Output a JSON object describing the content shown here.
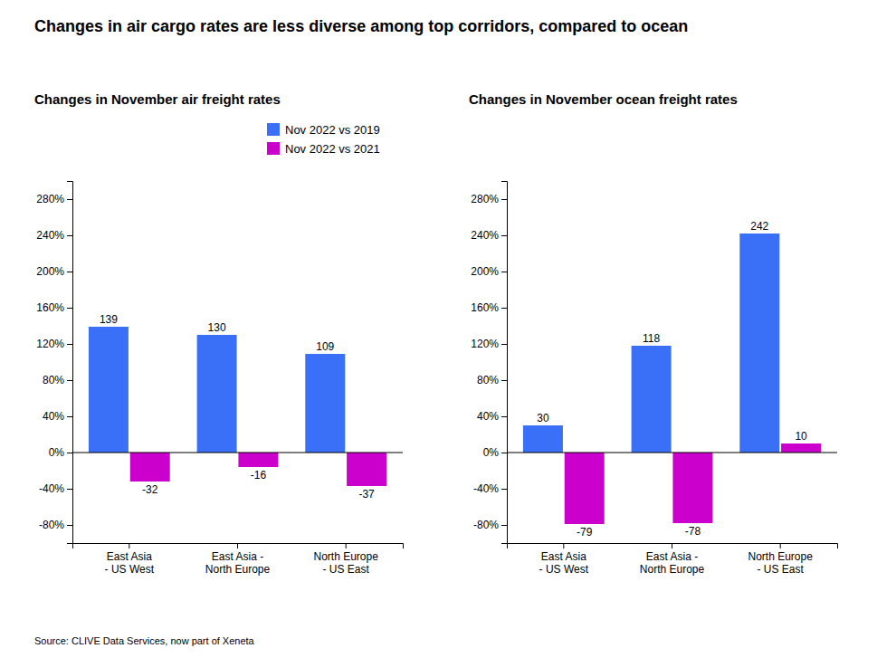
{
  "title": "Changes in air cargo rates are less diverse among top corridors, compared to ocean",
  "annotations": [
    "Source: CLIVE Data Services, now part of Xeneta"
  ],
  "chart_data": [
    {
      "type": "bar",
      "title": "Changes in November air freight rates",
      "categories": [
        "East Asia\n- US West",
        "East Asia -\nNorth Europe",
        "North Europe\n- US East"
      ],
      "series": [
        {
          "name": "Nov 2022 vs 2019",
          "color": "#3A6FF7",
          "values": [
            139,
            130,
            109
          ]
        },
        {
          "name": "Nov 2022 vs 2021",
          "color": "#CC00CC",
          "values": [
            -32,
            -16,
            -37
          ]
        }
      ],
      "ylim": [
        -100,
        300
      ],
      "yticks": [
        {
          "value": -80,
          "label": "-80%"
        },
        {
          "value": -40,
          "label": "-40%"
        },
        {
          "value": 0,
          "label": "0%"
        },
        {
          "value": 40,
          "label": "40%"
        },
        {
          "value": 80,
          "label": "80%"
        },
        {
          "value": 120,
          "label": "120%"
        },
        {
          "value": 160,
          "label": "160%"
        },
        {
          "value": 200,
          "label": "200%"
        },
        {
          "value": 240,
          "label": "240%"
        },
        {
          "value": 280,
          "label": "280%"
        }
      ],
      "grid": false,
      "legend": "upper right",
      "data_labels": true
    },
    {
      "type": "bar",
      "title": "Changes in November ocean freight rates",
      "categories": [
        "East Asia\n- US West",
        "East Asia -\nNorth Europe",
        "North Europe\n- US East"
      ],
      "series": [
        {
          "name": "Nov 2022 vs 2019",
          "color": "#3A6FF7",
          "values": [
            30,
            118,
            242
          ]
        },
        {
          "name": "Nov 2022 vs 2021",
          "color": "#CC00CC",
          "values": [
            -79,
            -78,
            10
          ]
        }
      ],
      "ylim": [
        -100,
        300
      ],
      "yticks": [
        {
          "value": -80,
          "label": "-80%"
        },
        {
          "value": -40,
          "label": "-40%"
        },
        {
          "value": 0,
          "label": "0%"
        },
        {
          "value": 40,
          "label": "40%"
        },
        {
          "value": 80,
          "label": "80%"
        },
        {
          "value": 120,
          "label": "120%"
        },
        {
          "value": 160,
          "label": "160%"
        },
        {
          "value": 200,
          "label": "200%"
        },
        {
          "value": 240,
          "label": "240%"
        },
        {
          "value": 280,
          "label": "280%"
        }
      ],
      "grid": false,
      "data_labels": true
    }
  ]
}
